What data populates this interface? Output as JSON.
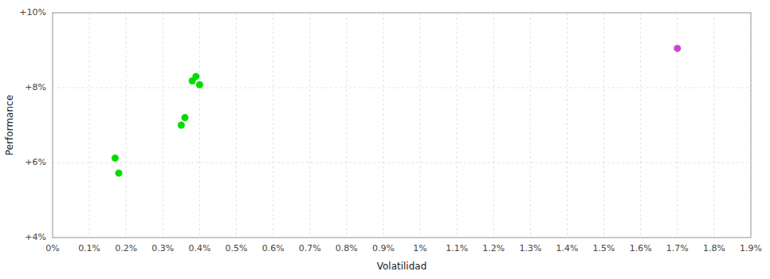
{
  "chart_data": {
    "type": "scatter",
    "xlabel": "Volatilidad",
    "ylabel": "Performance",
    "xlim": [
      0.0,
      0.019
    ],
    "ylim": [
      0.04,
      0.1
    ],
    "xticks": [
      {
        "value": 0.0,
        "label": "0%"
      },
      {
        "value": 0.001,
        "label": "0.1%"
      },
      {
        "value": 0.002,
        "label": "0.2%"
      },
      {
        "value": 0.003,
        "label": "0.3%"
      },
      {
        "value": 0.004,
        "label": "0.4%"
      },
      {
        "value": 0.005,
        "label": "0.5%"
      },
      {
        "value": 0.006,
        "label": "0.6%"
      },
      {
        "value": 0.007,
        "label": "0.7%"
      },
      {
        "value": 0.008,
        "label": "0.8%"
      },
      {
        "value": 0.009,
        "label": "0.9%"
      },
      {
        "value": 0.01,
        "label": "1%"
      },
      {
        "value": 0.011,
        "label": "1.1%"
      },
      {
        "value": 0.012,
        "label": "1.2%"
      },
      {
        "value": 0.013,
        "label": "1.3%"
      },
      {
        "value": 0.014,
        "label": "1.4%"
      },
      {
        "value": 0.015,
        "label": "1.5%"
      },
      {
        "value": 0.016,
        "label": "1.6%"
      },
      {
        "value": 0.017,
        "label": "1.7%"
      },
      {
        "value": 0.018,
        "label": "1.8%"
      },
      {
        "value": 0.019,
        "label": "1.9%"
      }
    ],
    "yticks": [
      {
        "value": 0.04,
        "label": "+4%"
      },
      {
        "value": 0.06,
        "label": "+6%"
      },
      {
        "value": 0.08,
        "label": "+8%"
      },
      {
        "value": 0.1,
        "label": "+10%"
      }
    ],
    "grid": true,
    "series": [
      {
        "color": "#00dd00",
        "x": [
          0.0017,
          0.0018,
          0.0035,
          0.0036,
          0.0038,
          0.0039,
          0.004
        ],
        "values": [
          0.0612,
          0.0572,
          0.07,
          0.072,
          0.0818,
          0.083,
          0.0808
        ]
      },
      {
        "color": "#cc44cc",
        "x": [
          0.017
        ],
        "values": [
          0.0905
        ]
      }
    ]
  }
}
